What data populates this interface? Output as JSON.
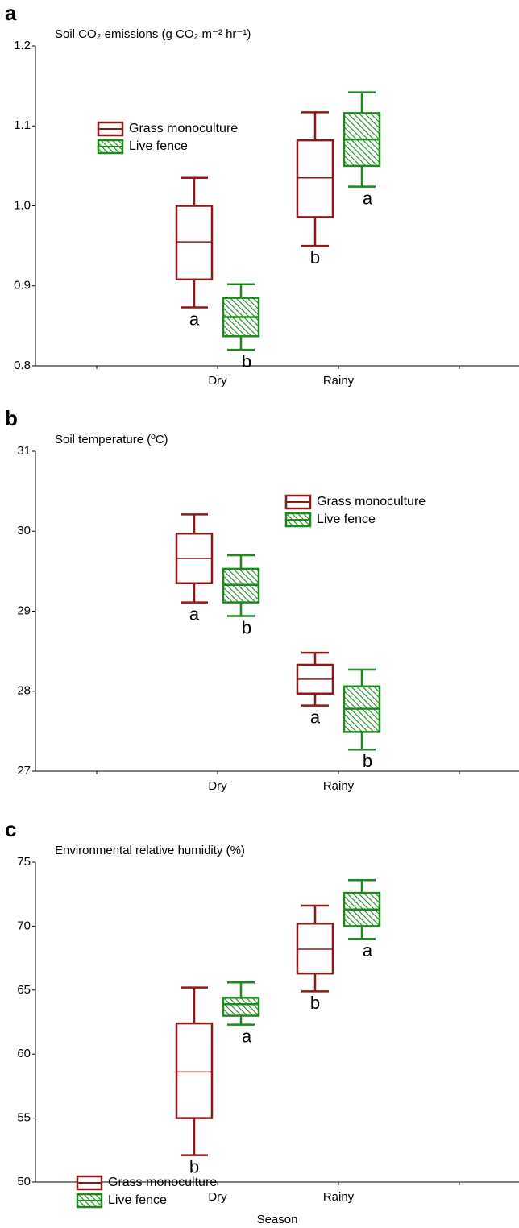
{
  "chart_data": [
    {
      "type": "box",
      "panel": "a",
      "title": "Soil CO₂ emissions (g CO₂ m⁻² hr⁻¹)",
      "categories": [
        "Dry",
        "Rainy"
      ],
      "ylim": [
        0.8,
        1.2
      ],
      "yticks": [
        0.8,
        0.9,
        {
          "value": 1,
          "label": "1.0"
        },
        1.1,
        1.2
      ],
      "legend": "upper left",
      "series": [
        {
          "name": "Grass monoculture",
          "color": "#8b1a1a",
          "values": [
            {
              "min": 0.873,
              "q1": 0.908,
              "median": 0.955,
              "q3": 1.0,
              "max": 1.035
            },
            {
              "min": 0.95,
              "q1": 0.986,
              "median": 1.035,
              "q3": 1.082,
              "max": 1.117
            }
          ],
          "letters": [
            "a",
            "b"
          ]
        },
        {
          "name": "Live fence",
          "color": "#1a8a1a",
          "values": [
            {
              "min": 0.82,
              "q1": 0.837,
              "median": 0.861,
              "q3": 0.885,
              "max": 0.902
            },
            {
              "min": 1.024,
              "q1": 1.05,
              "median": 1.083,
              "q3": 1.116,
              "max": 1.142
            }
          ],
          "letters": [
            "b",
            "a"
          ]
        }
      ]
    },
    {
      "type": "box",
      "panel": "b",
      "title": "Soil temperature (ºC)",
      "categories": [
        "Dry",
        "Rainy"
      ],
      "ylim": [
        27,
        31
      ],
      "yticks": [
        27,
        28,
        29,
        30,
        31
      ],
      "legend": "upper right",
      "series": [
        {
          "name": "Grass monoculture",
          "color": "#8b1a1a",
          "values": [
            {
              "min": 29.11,
              "q1": 29.35,
              "median": 29.66,
              "q3": 29.97,
              "max": 30.21
            },
            {
              "min": 27.82,
              "q1": 27.97,
              "median": 28.15,
              "q3": 28.33,
              "max": 28.48
            }
          ],
          "letters": [
            "a",
            "a"
          ]
        },
        {
          "name": "Live fence",
          "color": "#1a8a1a",
          "values": [
            {
              "min": 28.94,
              "q1": 29.11,
              "median": 29.33,
              "q3": 29.53,
              "max": 29.7
            },
            {
              "min": 27.27,
              "q1": 27.49,
              "median": 27.78,
              "q3": 28.06,
              "max": 28.27
            }
          ],
          "letters": [
            "b",
            "b"
          ]
        }
      ]
    },
    {
      "type": "box",
      "panel": "c",
      "title": "Environmental relative humidity (%)",
      "categories": [
        "Dry",
        "Rainy"
      ],
      "xlabel": "Season",
      "ylim": [
        50,
        75
      ],
      "yticks": [
        50,
        55,
        60,
        65,
        70,
        75
      ],
      "legend": "center left",
      "series": [
        {
          "name": "Grass monoculture",
          "color": "#8b1a1a",
          "values": [
            {
              "min": 52.1,
              "q1": 55,
              "median": 58.6,
              "q3": 62.4,
              "max": 65.2
            },
            {
              "min": 64.9,
              "q1": 66.3,
              "median": 68.2,
              "q3": 70.2,
              "max": 71.6
            }
          ],
          "letters": [
            "b",
            "b"
          ]
        },
        {
          "name": "Live fence",
          "color": "#1a8a1a",
          "values": [
            {
              "min": 62.3,
              "q1": 63,
              "median": 63.9,
              "q3": 64.4,
              "max": 65.6
            },
            {
              "min": 69,
              "q1": 70,
              "median": 71.3,
              "q3": 72.6,
              "max": 73.6
            }
          ],
          "letters": [
            "a",
            "a"
          ]
        }
      ]
    }
  ]
}
